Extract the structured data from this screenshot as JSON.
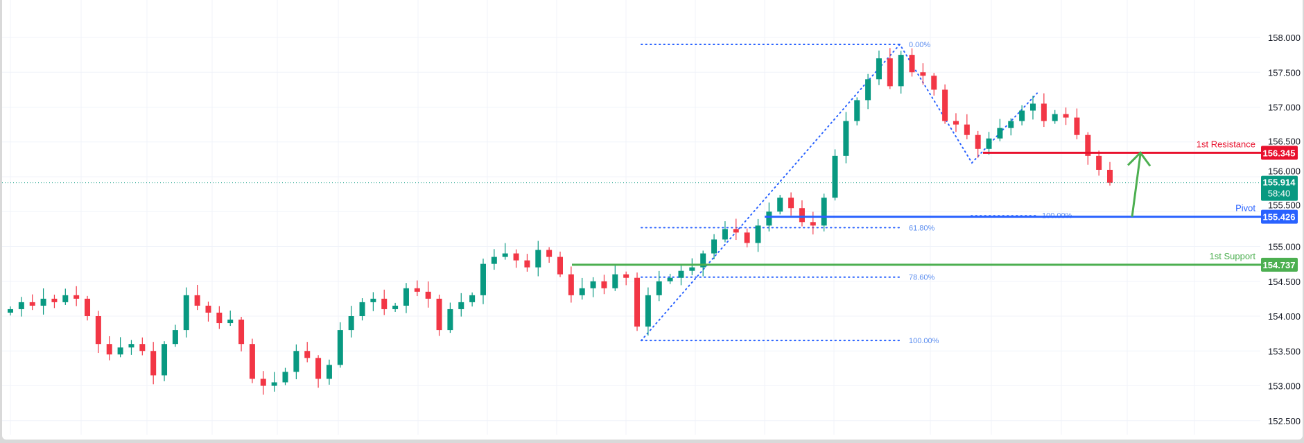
{
  "chart_data": {
    "type": "candlestick",
    "title": "",
    "colors": {
      "up": "#089981",
      "down": "#f23645",
      "grid": "#f0f3fa",
      "fib": "#2962ff",
      "fib_label": "#5b8def"
    },
    "ylim": [
      152.5,
      158.0
    ],
    "grid": true,
    "y_ticks": [
      "158.000",
      "157.500",
      "157.000",
      "156.500",
      "156.000",
      "155.500",
      "155.000",
      "154.500",
      "154.000",
      "153.500",
      "153.000",
      "152.500"
    ],
    "closes": [
      154.1,
      154.2,
      154.15,
      154.25,
      154.2,
      154.3,
      154.25,
      154.0,
      153.6,
      153.45,
      153.55,
      153.6,
      153.5,
      153.15,
      153.6,
      153.8,
      154.3,
      154.15,
      154.05,
      153.9,
      153.95,
      153.6,
      153.1,
      153.0,
      153.05,
      153.2,
      153.5,
      153.4,
      153.1,
      153.3,
      153.8,
      154.0,
      154.2,
      154.25,
      154.1,
      154.15,
      154.4,
      154.35,
      154.25,
      153.8,
      154.1,
      154.2,
      154.3,
      154.75,
      154.85,
      154.9,
      154.8,
      154.7,
      154.95,
      154.85,
      154.6,
      154.3,
      154.4,
      154.5,
      154.4,
      154.6,
      154.55,
      153.85,
      154.3,
      154.5,
      154.55,
      154.65,
      154.7,
      154.9,
      155.1,
      155.25,
      155.2,
      155.05,
      155.3,
      155.5,
      155.7,
      155.55,
      155.35,
      155.3,
      155.7,
      156.3,
      156.8,
      157.1,
      157.4,
      157.7,
      157.3,
      157.75,
      157.5,
      157.45,
      157.25,
      156.8,
      156.75,
      156.6,
      156.4,
      156.55,
      156.7,
      156.8,
      156.95,
      157.05,
      156.8,
      156.9,
      156.85,
      156.6,
      156.3,
      156.1,
      155.914
    ],
    "current_price": {
      "value": "155.914",
      "countdown": "58:40",
      "price": 155.914,
      "color": "#089981"
    },
    "levels": [
      {
        "name": "1st Resistance",
        "price": 156.345,
        "label": "156.345",
        "color": "#e8112d"
      },
      {
        "name": "Pivot",
        "price": 155.426,
        "label": "155.426",
        "color": "#2962ff"
      },
      {
        "name": "1st Support",
        "price": 154.737,
        "label": "154.737",
        "color": "#4caf50"
      }
    ],
    "fib_retracement": {
      "from_price": 153.65,
      "to_price": 157.9,
      "levels": [
        {
          "label": "0.00%",
          "price": 157.9
        },
        {
          "label": "61.80%",
          "price": 155.27
        },
        {
          "label": "78.60%",
          "price": 154.56
        },
        {
          "label": "100.00%",
          "price": 153.65
        }
      ]
    },
    "fib_secondary": {
      "label": "100.00%",
      "price": 155.44
    },
    "arrow": {
      "from_price": 155.426,
      "to_price": 156.345,
      "color": "#4caf50"
    }
  }
}
